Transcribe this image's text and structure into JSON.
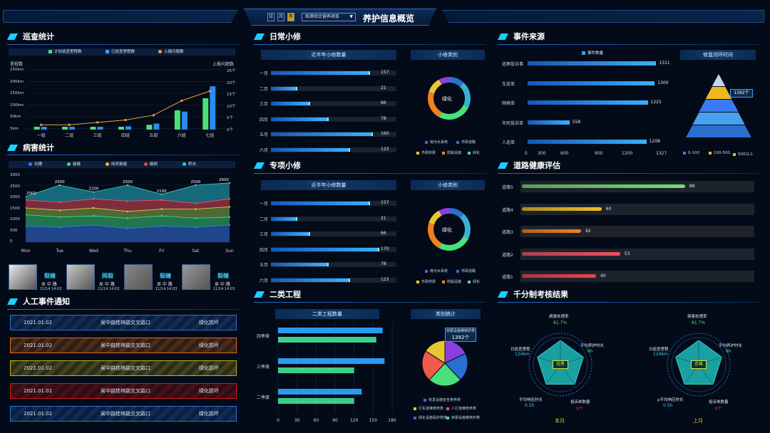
{
  "header": {
    "btn_day": "日",
    "btn_month": "月",
    "btn_year": "年",
    "project_select": "临港综合营养项目",
    "title": "养护信息概览"
  },
  "patrol": {
    "title": "巡查统计",
    "legend": [
      "计划巡查里程数",
      "已巡查里程数",
      "上报问题数"
    ],
    "left_axis_title": "里程数",
    "right_axis_title": "上报问题数",
    "left_ticks": [
      "250km",
      "200km",
      "150km",
      "100km",
      "50km",
      "5km"
    ],
    "right_ticks": [
      "25个",
      "20个",
      "15个",
      "10个",
      "5个",
      "0个"
    ]
  },
  "chart_data": [
    {
      "type": "bar",
      "title": "巡查统计",
      "categories": [
        "一组",
        "二组",
        "三组",
        "四组",
        "五组",
        "六组",
        "七组"
      ],
      "series": [
        {
          "name": "计划巡查里程数",
          "values": [
            7,
            8,
            10,
            12,
            20,
            80,
            130
          ]
        },
        {
          "name": "已巡查里程数",
          "values": [
            7,
            10,
            12,
            14,
            25,
            75,
            180
          ]
        },
        {
          "name": "上报问题数",
          "values": [
            2,
            2,
            3,
            4,
            6,
            12,
            16
          ]
        }
      ],
      "ylabel": "里程数"
    },
    {
      "type": "area",
      "title": "病害统计",
      "categories": [
        "Mon",
        "Tue",
        "Wed",
        "Thu",
        "Fri",
        "Sat",
        "Sun"
      ],
      "series": [
        {
          "name": "坑槽",
          "values": [
            2002,
            2500,
            2200,
            2500,
            2100,
            2500,
            2600
          ]
        },
        {
          "name": "裂缝",
          "values": [
            1850,
            1750,
            1900,
            1800,
            1850,
            1700,
            1900
          ]
        },
        {
          "name": "网状裂缝",
          "values": [
            1500,
            1400,
            1500,
            1350,
            1450,
            1450,
            1550
          ]
        },
        {
          "name": "破损",
          "values": [
            1200,
            1100,
            1150,
            1050,
            1150,
            1050,
            1100
          ]
        },
        {
          "name": "积水",
          "values": [
            700,
            650,
            750,
            600,
            700,
            650,
            750
          ]
        }
      ],
      "ylim": [
        0,
        3000
      ]
    },
    {
      "type": "bar",
      "title": "二类工程数量",
      "categories": [
        "四季度",
        "三季度",
        "二季度"
      ],
      "series": [
        {
          "name": "a",
          "values": [
            165,
            168,
            132
          ]
        },
        {
          "name": "b",
          "values": [
            155,
            120,
            120
          ]
        }
      ],
      "xlim": [
        0,
        180
      ]
    }
  ],
  "disease": {
    "title": "病害统计",
    "legend": [
      "坑槽",
      "裂缝",
      "网状裂缝",
      "破损",
      "积水"
    ],
    "y_ticks": [
      "3000",
      "2500",
      "2000",
      "1500",
      "1000",
      "500",
      "0"
    ],
    "peak_labels": [
      "2002",
      "2500",
      "2200",
      "2500",
      "2100",
      "2500",
      "2600"
    ],
    "cards": [
      {
        "type": "裂缝",
        "road": "吴 中 路",
        "time": "11/14 14:03"
      },
      {
        "type": "网裂",
        "road": "吴 中 路",
        "time": "11/14 14:03"
      },
      {
        "type": "裂缝",
        "road": "吴 中 路",
        "time": "11/14 14:03"
      },
      {
        "type": "裂缝",
        "road": "吴 中 路",
        "time": "11/14 14:03"
      }
    ]
  },
  "manual": {
    "title": "人工事件通知",
    "items": [
      {
        "date": "2021.01.02",
        "place": "吴中路桂林路交叉路口",
        "status": "绿化损坏",
        "color": "#2a6fd0"
      },
      {
        "date": "2021.01.02",
        "place": "吴中路桂林路交叉路口",
        "status": "绿化损坏",
        "color": "#e06a1a"
      },
      {
        "date": "2021.01.02",
        "place": "吴中路桂林路交叉路口",
        "status": "绿化损坏",
        "color": "#c8b020"
      },
      {
        "date": "2021.01.02",
        "place": "吴中路桂林路交叉路口",
        "status": "绿化损坏",
        "color": "#d01818"
      },
      {
        "date": "2021.01.02",
        "place": "吴中路桂林路交叉路口",
        "status": "绿化损坏",
        "color": "#2a6fd0"
      }
    ]
  },
  "daily": {
    "title": "日常小修",
    "sub_left": "近半年小修数量",
    "sub_right": "小修类别",
    "donut_center": "绿化",
    "rows": [
      {
        "label": "一月",
        "value": "157",
        "pct": 0.78
      },
      {
        "label": "二月",
        "value": "21",
        "pct": 0.2
      },
      {
        "label": "三月",
        "value": "66",
        "pct": 0.3
      },
      {
        "label": "四月",
        "value": "78",
        "pct": 0.45
      },
      {
        "label": "五月",
        "value": "160",
        "pct": 0.8
      },
      {
        "label": "六月",
        "value": "123",
        "pct": 0.62
      }
    ],
    "legend": [
      "雨污水系统",
      "市政道路",
      "市政桥梁",
      "附属设施",
      "绿化"
    ]
  },
  "special": {
    "title": "专项小修",
    "sub_left": "近半年小修数量",
    "sub_right": "小修类别",
    "donut_center": "绿化",
    "rows": [
      {
        "label": "一月",
        "value": "157",
        "pct": 0.78
      },
      {
        "label": "二月",
        "value": "21",
        "pct": 0.2
      },
      {
        "label": "三月",
        "value": "66",
        "pct": 0.3
      },
      {
        "label": "四月",
        "value": "170",
        "pct": 0.85
      },
      {
        "label": "五月",
        "value": "78",
        "pct": 0.45
      },
      {
        "label": "六月",
        "value": "123",
        "pct": 0.62
      }
    ],
    "legend": [
      "雨污水系统",
      "市政道路",
      "市政桥梁",
      "附属设施",
      "绿化"
    ]
  },
  "class2": {
    "title": "二类工程",
    "sub_left": "二类工程数量",
    "sub_right": "类别统计",
    "rows": [
      "四季度",
      "三季度",
      "二季度"
    ],
    "x_ticks": [
      "0",
      "30",
      "60",
      "90",
      "120",
      "150",
      "180"
    ],
    "callout_label": "桥梁设施维修护类",
    "callout_value": "1392个",
    "legend": [
      "突发设施安全类养类",
      "行车道维修养类",
      "人行道维修养类",
      "绿化设施看护类类",
      "桥梁设施维修护类"
    ]
  },
  "source": {
    "title": "事件来源",
    "legend": "事件数量",
    "rows": [
      {
        "label": "巡察投诉事",
        "value": "1311",
        "pct": 0.92
      },
      {
        "label": "车巡单",
        "value": "1300",
        "pct": 0.91
      },
      {
        "label": "网格单",
        "value": "1225",
        "pct": 0.86
      },
      {
        "label": "市民投诉单",
        "value": "558",
        "pct": 0.3
      },
      {
        "label": "人巡单",
        "value": "1208",
        "pct": 0.85
      }
    ],
    "x_ticks": [
      "0",
      "300",
      "600",
      "900",
      "1200",
      "1327"
    ],
    "pyramid_title": "修复闭环时间",
    "pyramid_callout": "1392个",
    "pyramid_legend": [
      "0-100",
      "100-500",
      "500以上"
    ]
  },
  "health": {
    "title": "道路健康评估",
    "rows": [
      {
        "label": "道路5",
        "value": "88",
        "pct": 0.88,
        "color": "#6fe070"
      },
      {
        "label": "道路4",
        "value": "60",
        "pct": 0.43,
        "color": "#f0c020"
      },
      {
        "label": "道路3",
        "value": "62",
        "pct": 0.32,
        "color": "#f08020"
      },
      {
        "label": "道路2",
        "value": "53",
        "pct": 0.53,
        "color": "#f05060"
      },
      {
        "label": "道路1",
        "value": "40",
        "pct": 0.4,
        "color": "#f04050"
      }
    ]
  },
  "score": {
    "title": "千分制考核结果",
    "left": {
      "caption": "本月",
      "grade": "优秀",
      "top": "病害处理率",
      "top_val": "81.7%",
      "right": "平均养护时长",
      "right_val": "8h",
      "left": "日巡查里程",
      "left_val": "124km",
      "bl": "平均响应时长",
      "bl_val": "0.5h",
      "br": "投诉单数量",
      "br_val": "3个"
    },
    "right": {
      "caption": "上月",
      "grade": "合格",
      "top": "病害处理率",
      "top_val": "81.7%",
      "right": "平均养护时长",
      "right_val": "8h",
      "left": "日巡查里程",
      "left_val": "124km",
      "bl": "p平均响应时长",
      "bl_val": "0.5h",
      "br": "投诉单数量",
      "br_val": "3个"
    }
  }
}
